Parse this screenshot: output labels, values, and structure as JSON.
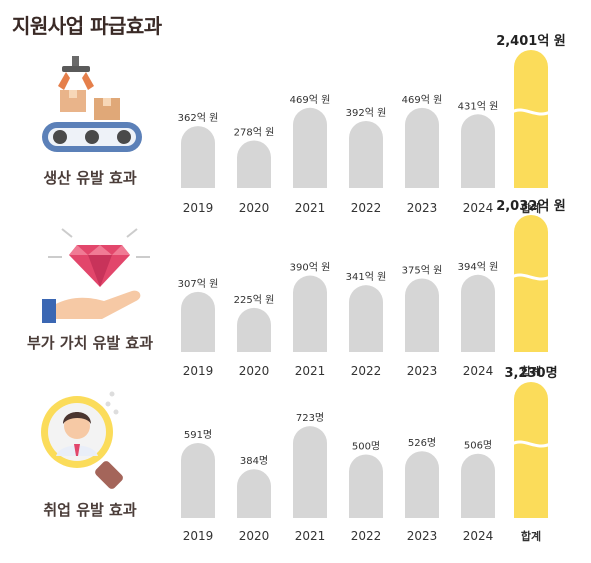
{
  "title": "지원사업 파급효과",
  "colors": {
    "bar": "#d6d6d6",
    "total": "#fbdc5a",
    "title": "#3a2a26",
    "text": "#333333"
  },
  "chart_data": [
    {
      "type": "bar",
      "label": "생산 유발 효과",
      "icon": "factory-conveyor-icon",
      "categories": [
        "2019",
        "2020",
        "2021",
        "2022",
        "2023",
        "2024"
      ],
      "values": [
        362,
        278,
        469,
        392,
        469,
        431
      ],
      "value_labels": [
        "362억 원",
        "278억 원",
        "469억 원",
        "392억 원",
        "469억 원",
        "431억 원"
      ],
      "total_label": "합계",
      "total_value": 2401,
      "total_value_label": "2,401억 원"
    },
    {
      "type": "bar",
      "label": "부가 가치 유발 효과",
      "icon": "diamond-hand-icon",
      "categories": [
        "2019",
        "2020",
        "2021",
        "2022",
        "2023",
        "2024"
      ],
      "values": [
        307,
        225,
        390,
        341,
        375,
        394
      ],
      "value_labels": [
        "307억 원",
        "225억 원",
        "390억 원",
        "341억 원",
        "375억 원",
        "394억 원"
      ],
      "total_label": "합계",
      "total_value": 2032,
      "total_value_label": "2,032억 원"
    },
    {
      "type": "bar",
      "label": "취업 유발 효과",
      "icon": "employee-magnifier-icon",
      "categories": [
        "2019",
        "2020",
        "2021",
        "2022",
        "2023",
        "2024"
      ],
      "values": [
        591,
        384,
        723,
        500,
        526,
        506
      ],
      "value_labels": [
        "591명",
        "384명",
        "723명",
        "500명",
        "526명",
        "506명"
      ],
      "total_label": "합계",
      "total_value": 3230,
      "total_value_label": "3,230명"
    }
  ]
}
